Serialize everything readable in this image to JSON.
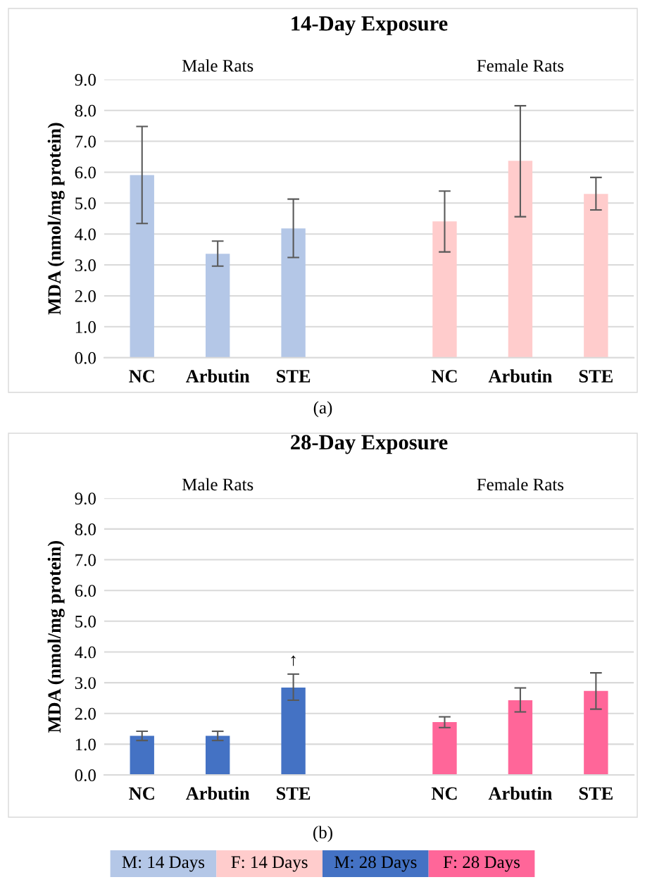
{
  "chart_data": [
    {
      "type": "bar",
      "title": "14-Day Exposure",
      "ylabel": "MDA (nmol/mg protein)",
      "categories": [
        "NC",
        "Arbutin",
        "STE",
        null,
        "NC",
        "Arbutin",
        "STE"
      ],
      "series": [
        {
          "name": "M: 14 Days",
          "color": "#b4c7e7",
          "values": [
            5.91,
            3.36,
            4.18,
            null,
            null,
            null,
            null
          ],
          "errors": [
            [
              4.34,
              7.48
            ],
            [
              2.96,
              3.77
            ],
            [
              3.24,
              5.13
            ],
            null,
            null,
            null,
            null
          ]
        },
        {
          "name": "F: 14 Days",
          "color": "#ffcccc",
          "values": [
            null,
            null,
            null,
            null,
            4.41,
            6.37,
            5.3
          ],
          "errors": [
            null,
            null,
            null,
            null,
            [
              3.42,
              5.39
            ],
            [
              4.56,
              8.15
            ],
            [
              4.78,
              5.83
            ]
          ]
        }
      ],
      "ylim": [
        0,
        9
      ],
      "yticks": [
        {
          "value": 0,
          "label": "0.0"
        },
        {
          "value": 1,
          "label": "1.0"
        },
        {
          "value": 2,
          "label": "2.0"
        },
        {
          "value": 3,
          "label": "3.0"
        },
        {
          "value": 4,
          "label": "4.0"
        },
        {
          "value": 5,
          "label": "5.0"
        },
        {
          "value": 6,
          "label": "6.0"
        },
        {
          "value": 7,
          "label": "7.0"
        },
        {
          "value": 8,
          "label": "8.0"
        },
        {
          "value": 9,
          "label": "9.0"
        }
      ],
      "grid": "y",
      "legend": "bottom",
      "annotations": [
        "Male Rats",
        "Female Rats",
        "(a)"
      ]
    },
    {
      "type": "bar",
      "title": "28-Day Exposure",
      "ylabel": "MDA (nmol/mg protein)",
      "categories": [
        "NC",
        "Arbutin",
        "STE",
        null,
        "NC",
        "Arbutin",
        "STE"
      ],
      "series": [
        {
          "name": "M: 28 Days",
          "color": "#4472c4",
          "values": [
            1.27,
            1.27,
            2.84,
            null,
            null,
            null,
            null
          ],
          "errors": [
            [
              1.12,
              1.42
            ],
            [
              1.12,
              1.42
            ],
            [
              2.43,
              3.28
            ],
            null,
            null,
            null,
            null
          ]
        },
        {
          "name": "F: 28 Days",
          "color": "#ff6699",
          "values": [
            null,
            null,
            null,
            null,
            1.72,
            2.43,
            2.73
          ],
          "errors": [
            null,
            null,
            null,
            null,
            [
              1.54,
              1.89
            ],
            [
              2.05,
              2.83
            ],
            [
              2.14,
              3.32
            ]
          ]
        }
      ],
      "ylim": [
        0,
        9
      ],
      "yticks": [
        {
          "value": 0,
          "label": "0.0"
        },
        {
          "value": 1,
          "label": "1.0"
        },
        {
          "value": 2,
          "label": "2.0"
        },
        {
          "value": 3,
          "label": "3.0"
        },
        {
          "value": 4,
          "label": "4.0"
        },
        {
          "value": 5,
          "label": "5.0"
        },
        {
          "value": 6,
          "label": "6.0"
        },
        {
          "value": 7,
          "label": "7.0"
        },
        {
          "value": 8,
          "label": "8.0"
        },
        {
          "value": 9,
          "label": "9.0"
        }
      ],
      "grid": "y",
      "legend": "bottom",
      "annotations": [
        "Male Rats",
        "Female Rats",
        "(b)",
        {
          "text": "↑",
          "x": "STE",
          "y": 2.84
        }
      ]
    }
  ]
}
